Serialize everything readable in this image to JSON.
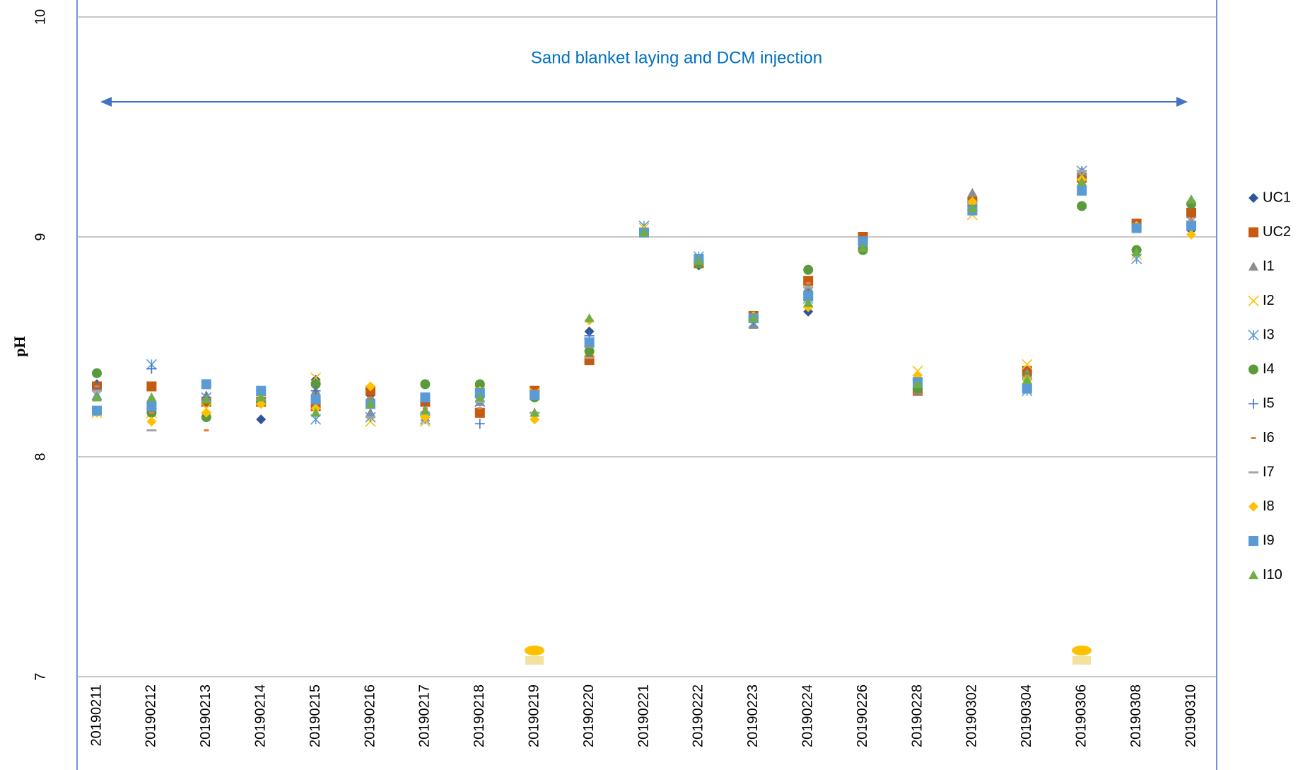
{
  "chart_data": {
    "type": "scatter",
    "annotation": "Sand blanket laying and DCM injection",
    "y_label": "pH",
    "categories": [
      "20190211",
      "20190212",
      "20190213",
      "20190214",
      "20190215",
      "20190216",
      "20190217",
      "20190218",
      "20190219",
      "20190220",
      "20190221",
      "20190222",
      "20190223",
      "20190224",
      "20190226",
      "20190228",
      "20190302",
      "20190304",
      "20190306",
      "20190308",
      "20190310"
    ],
    "ylim": [
      7,
      10
    ],
    "yticks": [
      7,
      8,
      9,
      10
    ],
    "grid": true,
    "series": [
      {
        "name": "UC1",
        "color": "#2f5597",
        "marker": "diamond",
        "values": [
          8.33,
          8.24,
          8.25,
          8.17,
          8.35,
          8.28,
          8.2,
          8.27,
          8.28,
          8.57,
          9.02,
          8.87,
          8.62,
          8.66,
          8.96,
          8.32,
          9.15,
          8.35,
          9.25,
          9.05,
          9.03
        ]
      },
      {
        "name": "UC2",
        "color": "#c55a11",
        "marker": "square",
        "values": [
          8.32,
          8.32,
          8.25,
          8.25,
          8.23,
          8.3,
          8.25,
          8.2,
          8.3,
          8.44,
          9.02,
          8.88,
          8.64,
          8.8,
          9.0,
          8.3,
          9.16,
          8.39,
          9.27,
          9.06,
          9.11
        ]
      },
      {
        "name": "I1",
        "color": "#8c8c8c",
        "marker": "triangle",
        "values": [
          8.28,
          8.25,
          8.28,
          8.27,
          8.3,
          8.2,
          8.18,
          8.25,
          8.28,
          8.5,
          9.03,
          8.9,
          8.6,
          8.77,
          8.97,
          8.3,
          9.2,
          8.38,
          9.3,
          9.04,
          9.17
        ]
      },
      {
        "name": "I2",
        "color": "#ffc000",
        "marker": "x",
        "values": [
          8.2,
          8.2,
          8.22,
          8.26,
          8.36,
          8.16,
          8.16,
          8.3,
          8.29,
          8.48,
          9.04,
          8.9,
          8.63,
          8.7,
          8.96,
          8.39,
          9.1,
          8.42,
          9.28,
          8.92,
          9.05
        ]
      },
      {
        "name": "I3",
        "color": "#5b9bd5",
        "marker": "star",
        "values": [
          8.28,
          8.42,
          8.27,
          8.28,
          8.17,
          8.18,
          8.17,
          8.25,
          8.28,
          8.52,
          9.05,
          8.91,
          8.61,
          8.72,
          8.97,
          8.33,
          9.14,
          8.3,
          9.3,
          8.9,
          9.07
        ]
      },
      {
        "name": "I4",
        "color": "#5a9a3a",
        "marker": "circle",
        "values": [
          8.38,
          8.2,
          8.18,
          8.25,
          8.33,
          8.25,
          8.33,
          8.33,
          8.27,
          8.48,
          9.02,
          8.88,
          8.63,
          8.85,
          8.94,
          8.31,
          9.12,
          8.36,
          9.14,
          8.94,
          9.15
        ]
      },
      {
        "name": "I5",
        "color": "#4472c4",
        "marker": "plus",
        "values": [
          8.32,
          8.4,
          8.27,
          8.28,
          8.3,
          8.25,
          8.25,
          8.15,
          8.2,
          8.55,
          9.03,
          8.9,
          8.62,
          8.75,
          8.97,
          8.35,
          9.14,
          8.35,
          9.27,
          9.04,
          9.07
        ]
      },
      {
        "name": "I6",
        "color": "#ed7d31",
        "marker": "short-dash",
        "values": [
          8.32,
          8.2,
          8.12,
          8.25,
          8.22,
          8.27,
          8.22,
          8.22,
          8.3,
          8.5,
          9.02,
          8.89,
          8.64,
          8.79,
          8.98,
          8.33,
          9.15,
          8.37,
          9.27,
          9.05,
          9.08
        ]
      },
      {
        "name": "I7",
        "color": "#a5a5a5",
        "marker": "long-dash",
        "values": [
          8.3,
          8.12,
          8.25,
          8.26,
          8.25,
          8.18,
          8.2,
          8.25,
          8.2,
          8.45,
          9.03,
          8.9,
          8.62,
          8.77,
          8.97,
          8.34,
          9.15,
          8.36,
          9.3,
          9.04,
          9.07
        ]
      },
      {
        "name": "I8",
        "color": "#ffc000",
        "marker": "diamond",
        "values": [
          8.2,
          8.16,
          8.2,
          8.24,
          8.22,
          8.32,
          8.18,
          8.3,
          8.17,
          8.62,
          9.03,
          8.9,
          8.64,
          8.68,
          8.97,
          8.37,
          9.16,
          8.35,
          9.26,
          9.05,
          9.01
        ]
      },
      {
        "name": "I9",
        "color": "#5b9bd5",
        "marker": "square",
        "values": [
          8.21,
          8.23,
          8.33,
          8.3,
          8.26,
          8.24,
          8.27,
          8.29,
          8.28,
          8.52,
          9.02,
          8.9,
          8.63,
          8.73,
          8.98,
          8.34,
          9.12,
          8.31,
          9.21,
          9.04,
          9.05
        ]
      },
      {
        "name": "I10",
        "color": "#70ad47",
        "marker": "triangle",
        "values": [
          8.27,
          8.27,
          8.26,
          8.27,
          8.2,
          8.24,
          8.21,
          8.27,
          8.2,
          8.63,
          9.02,
          8.89,
          8.63,
          8.7,
          8.95,
          8.33,
          9.13,
          8.35,
          9.25,
          8.93,
          9.17
        ]
      }
    ]
  }
}
